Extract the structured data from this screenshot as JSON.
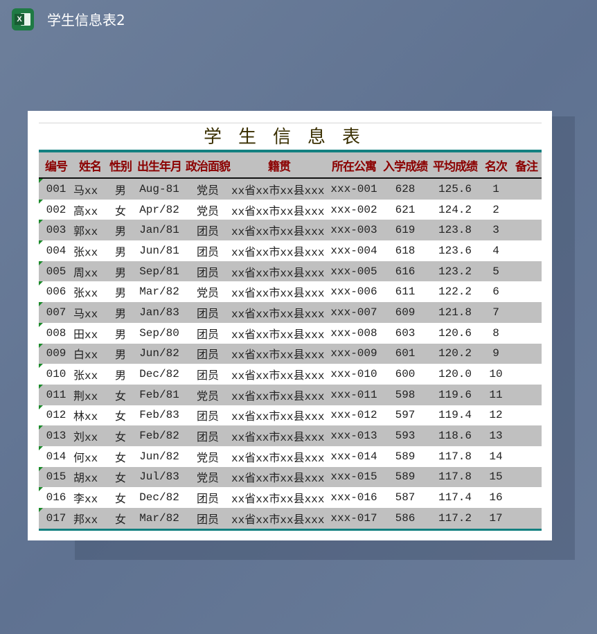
{
  "window": {
    "title": "学生信息表2",
    "app_icon": "excel-icon"
  },
  "sheet": {
    "title": "学生信息表",
    "headers": [
      "编号",
      "姓名",
      "性别",
      "出生年月",
      "政治面貌",
      "籍贯",
      "所在公寓",
      "入学成绩",
      "平均成绩",
      "名次",
      "备注"
    ],
    "rows": [
      [
        "001",
        "马xx",
        "男",
        "Aug-81",
        "党员",
        "xx省xx市xx县xxx",
        "xxx-001",
        "628",
        "125.6",
        "1",
        ""
      ],
      [
        "002",
        "高xx",
        "女",
        "Apr/82",
        "党员",
        "xx省xx市xx县xxx",
        "xxx-002",
        "621",
        "124.2",
        "2",
        ""
      ],
      [
        "003",
        "郭xx",
        "男",
        "Jan/81",
        "团员",
        "xx省xx市xx县xxx",
        "xxx-003",
        "619",
        "123.8",
        "3",
        ""
      ],
      [
        "004",
        "张xx",
        "男",
        "Jun/81",
        "团员",
        "xx省xx市xx县xxx",
        "xxx-004",
        "618",
        "123.6",
        "4",
        ""
      ],
      [
        "005",
        "周xx",
        "男",
        "Sep/81",
        "团员",
        "xx省xx市xx县xxx",
        "xxx-005",
        "616",
        "123.2",
        "5",
        ""
      ],
      [
        "006",
        "张xx",
        "男",
        "Mar/82",
        "党员",
        "xx省xx市xx县xxx",
        "xxx-006",
        "611",
        "122.2",
        "6",
        ""
      ],
      [
        "007",
        "马xx",
        "男",
        "Jan/83",
        "团员",
        "xx省xx市xx县xxx",
        "xxx-007",
        "609",
        "121.8",
        "7",
        ""
      ],
      [
        "008",
        "田xx",
        "男",
        "Sep/80",
        "团员",
        "xx省xx市xx县xxx",
        "xxx-008",
        "603",
        "120.6",
        "8",
        ""
      ],
      [
        "009",
        "白xx",
        "男",
        "Jun/82",
        "团员",
        "xx省xx市xx县xxx",
        "xxx-009",
        "601",
        "120.2",
        "9",
        ""
      ],
      [
        "010",
        "张xx",
        "男",
        "Dec/82",
        "团员",
        "xx省xx市xx县xxx",
        "xxx-010",
        "600",
        "120.0",
        "10",
        ""
      ],
      [
        "011",
        "荆xx",
        "女",
        "Feb/81",
        "党员",
        "xx省xx市xx县xxx",
        "xxx-011",
        "598",
        "119.6",
        "11",
        ""
      ],
      [
        "012",
        "林xx",
        "女",
        "Feb/83",
        "团员",
        "xx省xx市xx县xxx",
        "xxx-012",
        "597",
        "119.4",
        "12",
        ""
      ],
      [
        "013",
        "刘xx",
        "女",
        "Feb/82",
        "团员",
        "xx省xx市xx县xxx",
        "xxx-013",
        "593",
        "118.6",
        "13",
        ""
      ],
      [
        "014",
        "何xx",
        "女",
        "Jun/82",
        "党员",
        "xx省xx市xx县xxx",
        "xxx-014",
        "589",
        "117.8",
        "14",
        ""
      ],
      [
        "015",
        "胡xx",
        "女",
        "Jul/83",
        "党员",
        "xx省xx市xx县xxx",
        "xxx-015",
        "589",
        "117.8",
        "15",
        ""
      ],
      [
        "016",
        "李xx",
        "女",
        "Dec/82",
        "团员",
        "xx省xx市xx县xxx",
        "xxx-016",
        "587",
        "117.4",
        "16",
        ""
      ],
      [
        "017",
        "邦xx",
        "女",
        "Mar/82",
        "团员",
        "xx省xx市xx县xxx",
        "xxx-017",
        "586",
        "117.2",
        "17",
        ""
      ]
    ]
  },
  "colors": {
    "header_text": "#8b0000",
    "accent": "#138080",
    "band": "#c0c0c0"
  }
}
